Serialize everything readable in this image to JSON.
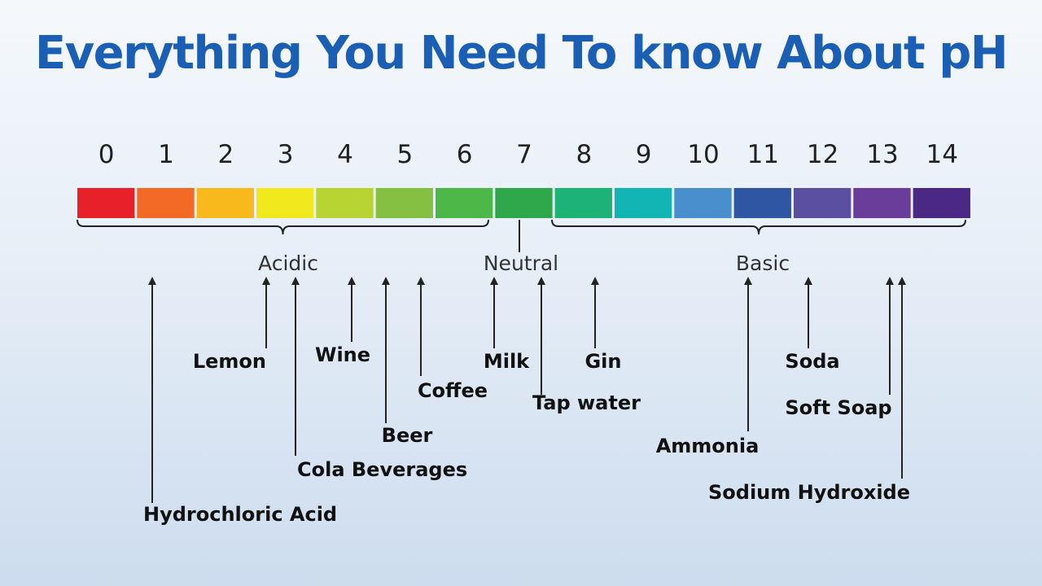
{
  "title": "Everything You Need To know About pH",
  "scale": {
    "values": [
      "0",
      "1",
      "2",
      "3",
      "4",
      "5",
      "6",
      "7",
      "8",
      "9",
      "10",
      "11",
      "12",
      "13",
      "14"
    ],
    "colors": [
      "#e8202a",
      "#f26a26",
      "#f8b91c",
      "#f1e91e",
      "#b7d433",
      "#86c043",
      "#4db848",
      "#2ea84a",
      "#1db377",
      "#12b5b3",
      "#4a8fcd",
      "#2f56a3",
      "#5b4fa2",
      "#6a3d9a",
      "#4a2883"
    ]
  },
  "categories": [
    {
      "label": "Acidic"
    },
    {
      "label": "Neutral"
    },
    {
      "label": "Basic"
    }
  ],
  "substances": [
    {
      "label": "Hydrochloric Acid"
    },
    {
      "label": "Lemon"
    },
    {
      "label": "Cola Beverages"
    },
    {
      "label": "Wine"
    },
    {
      "label": "Beer"
    },
    {
      "label": "Coffee"
    },
    {
      "label": "Milk"
    },
    {
      "label": "Tap water"
    },
    {
      "label": "Gin"
    },
    {
      "label": "Ammonia"
    },
    {
      "label": "Soda"
    },
    {
      "label": "Soft Soap"
    },
    {
      "label": "Sodium Hydroxide"
    }
  ]
}
